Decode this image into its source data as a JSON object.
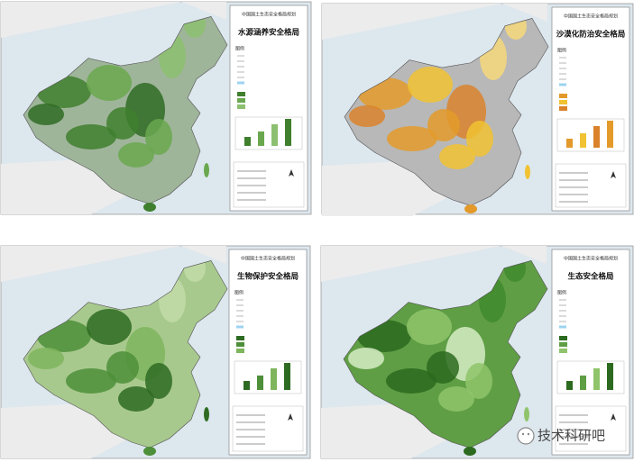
{
  "panels": [
    {
      "header": "中国国土生态安全格局规划",
      "title": "水源涵养安全格局",
      "legend_title": "图例"
    },
    {
      "header": "中国国土生态安全格局规划",
      "title": "沙漠化防治安全格局",
      "legend_title": "图例"
    },
    {
      "header": "中国国土生态安全格局规划",
      "title": "生物保护安全格局",
      "legend_title": "图例"
    },
    {
      "header": "中国国土生态安全格局规划",
      "title": "生态安全格局",
      "legend_title": "图例"
    }
  ],
  "watermark": "技术科研吧"
}
